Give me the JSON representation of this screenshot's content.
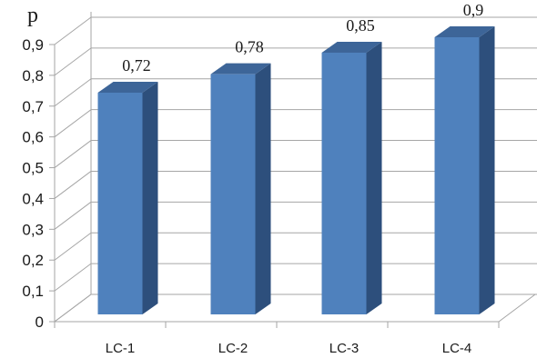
{
  "chart_data": {
    "type": "bar",
    "style": "3d-column",
    "categories": [
      "LC-1",
      "LC-2",
      "LC-3",
      "LC-4"
    ],
    "values": [
      0.72,
      0.78,
      0.85,
      0.9
    ],
    "data_labels": [
      "0,72",
      "0,78",
      "0,85",
      "0,9"
    ],
    "y_ticks": [
      "0",
      "0,1",
      "0,2",
      "0,3",
      "0,4",
      "0,5",
      "0,6",
      "0,7",
      "0,8",
      "0,9"
    ],
    "ylabel": "p",
    "xlabel": "",
    "title": "",
    "ylim": [
      0,
      0.9
    ],
    "grid": true,
    "legend": "none",
    "colors": {
      "bar_front": "#4f81bd",
      "bar_side": "#2d4f7c",
      "bar_top": "#3d6598",
      "grid": "#a6a6a6",
      "wall": "#ffffff"
    }
  }
}
